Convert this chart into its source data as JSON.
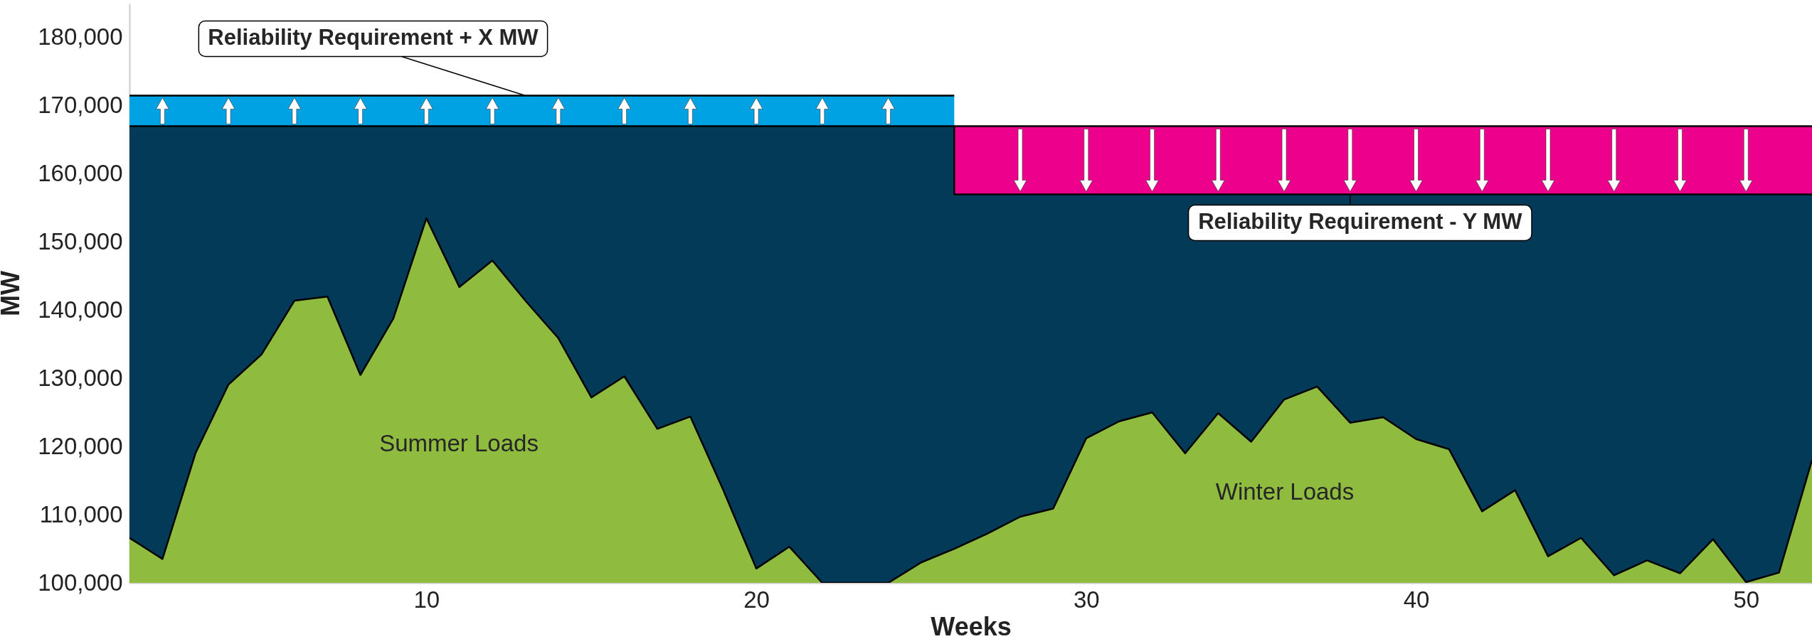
{
  "chart_data": {
    "type": "area",
    "xlabel": "Weeks",
    "ylabel": "MW",
    "xlim": [
      1,
      52
    ],
    "xticks": [
      10,
      20,
      30,
      40,
      50
    ],
    "ylim": [
      100000,
      185000
    ],
    "yticks": [
      {
        "value": 100000,
        "label": "100,000"
      },
      {
        "value": 110000,
        "label": "110,000"
      },
      {
        "value": 120000,
        "label": "120,000"
      },
      {
        "value": 130000,
        "label": "130,000"
      },
      {
        "value": 140000,
        "label": "140,000"
      },
      {
        "value": 150000,
        "label": "150,000"
      },
      {
        "value": 160000,
        "label": "160,000"
      },
      {
        "value": 170000,
        "label": "170,000"
      },
      {
        "value": 180000,
        "label": "180,000"
      }
    ],
    "grid": false,
    "series": [
      {
        "color": "#00a2e3",
        "x": [
          1,
          26
        ],
        "values": [
          171500,
          171500
        ]
      },
      {
        "color": "#ec008c",
        "x": [
          26,
          52
        ],
        "values": [
          167000,
          167000
        ]
      },
      {
        "color": "#023a58",
        "x": [
          1,
          26,
          26,
          52
        ],
        "values": [
          167000,
          167000,
          157000,
          157000
        ]
      },
      {
        "color": "#8fbc3f",
        "x": [
          1,
          2,
          3,
          4,
          5,
          6,
          7,
          8,
          9,
          10,
          11,
          12,
          13,
          14,
          15,
          16,
          17,
          18,
          19,
          20,
          21,
          22,
          23,
          24,
          25,
          26,
          27,
          28,
          29,
          30,
          31,
          32,
          33,
          34,
          35,
          36,
          37,
          38,
          39,
          40,
          41,
          42,
          43,
          44,
          45,
          46,
          47,
          48,
          49,
          50,
          51,
          52
        ],
        "values": [
          106600,
          103500,
          119000,
          129100,
          133500,
          141400,
          142000,
          130500,
          138800,
          153500,
          143400,
          147300,
          141400,
          135900,
          127200,
          130300,
          122600,
          124400,
          113600,
          102100,
          105300,
          100000,
          100000,
          100000,
          103000,
          105000,
          107200,
          109700,
          110900,
          121200,
          123700,
          125000,
          119000,
          124900,
          120700,
          126900,
          128800,
          123500,
          124300,
          121100,
          119600,
          110500,
          113600,
          103900,
          106600,
          101100,
          103300,
          101400,
          106400,
          100100,
          101500,
          118000
        ]
      }
    ],
    "annotations": [
      {
        "text": "Reliability Requirement + X MW",
        "x": 13,
        "y": 171500
      },
      {
        "text": "Reliability Requirement - Y MW",
        "x": 38,
        "y": 157000
      },
      "Summer Loads",
      "Winter Loads"
    ]
  }
}
